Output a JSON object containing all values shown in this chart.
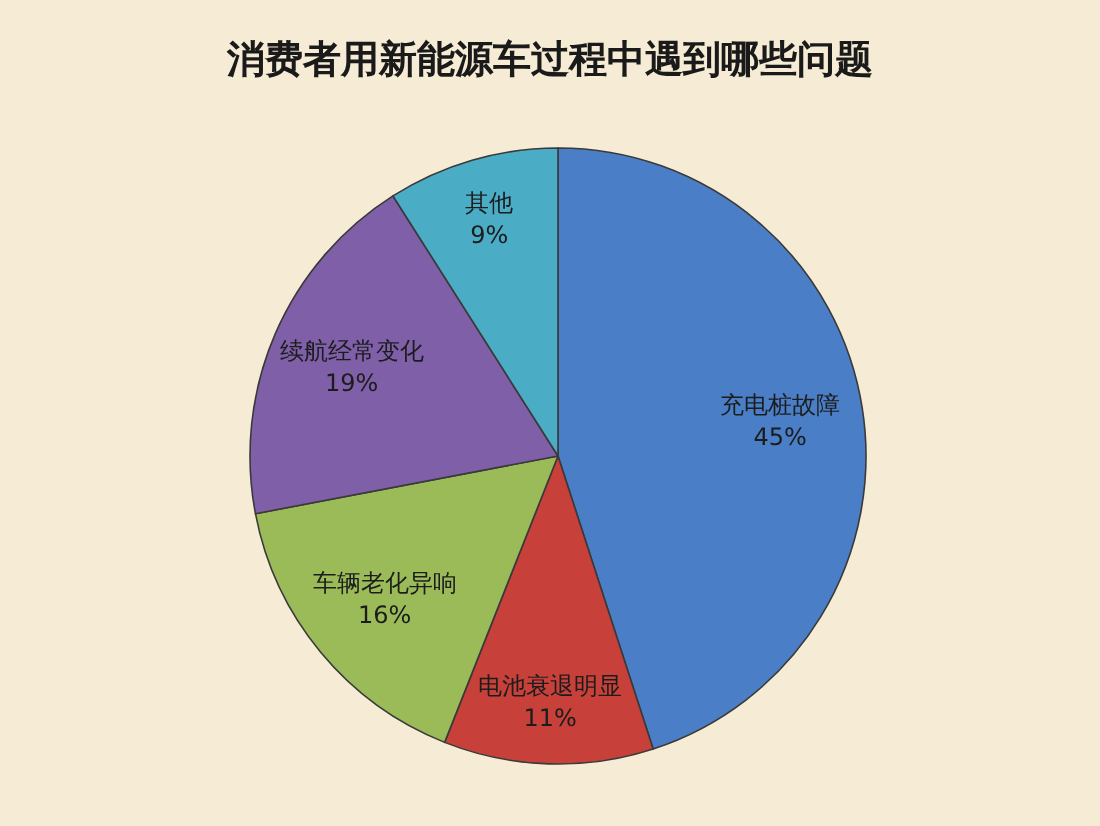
{
  "chart_data": {
    "type": "pie",
    "title": "消费者用新能源车过程中遇到哪些问题",
    "categories": [
      "充电桩故障",
      "电池衰退明显",
      "车辆老化异响",
      "续航经常变化",
      "其他"
    ],
    "values": [
      45,
      11,
      16,
      19,
      9
    ],
    "value_labels": [
      "45%",
      "11%",
      "16%",
      "19%",
      "9%"
    ],
    "colors": [
      "#4a7ec6",
      "#c8403a",
      "#9bbb59",
      "#7f5fa8",
      "#4bacc6"
    ]
  }
}
